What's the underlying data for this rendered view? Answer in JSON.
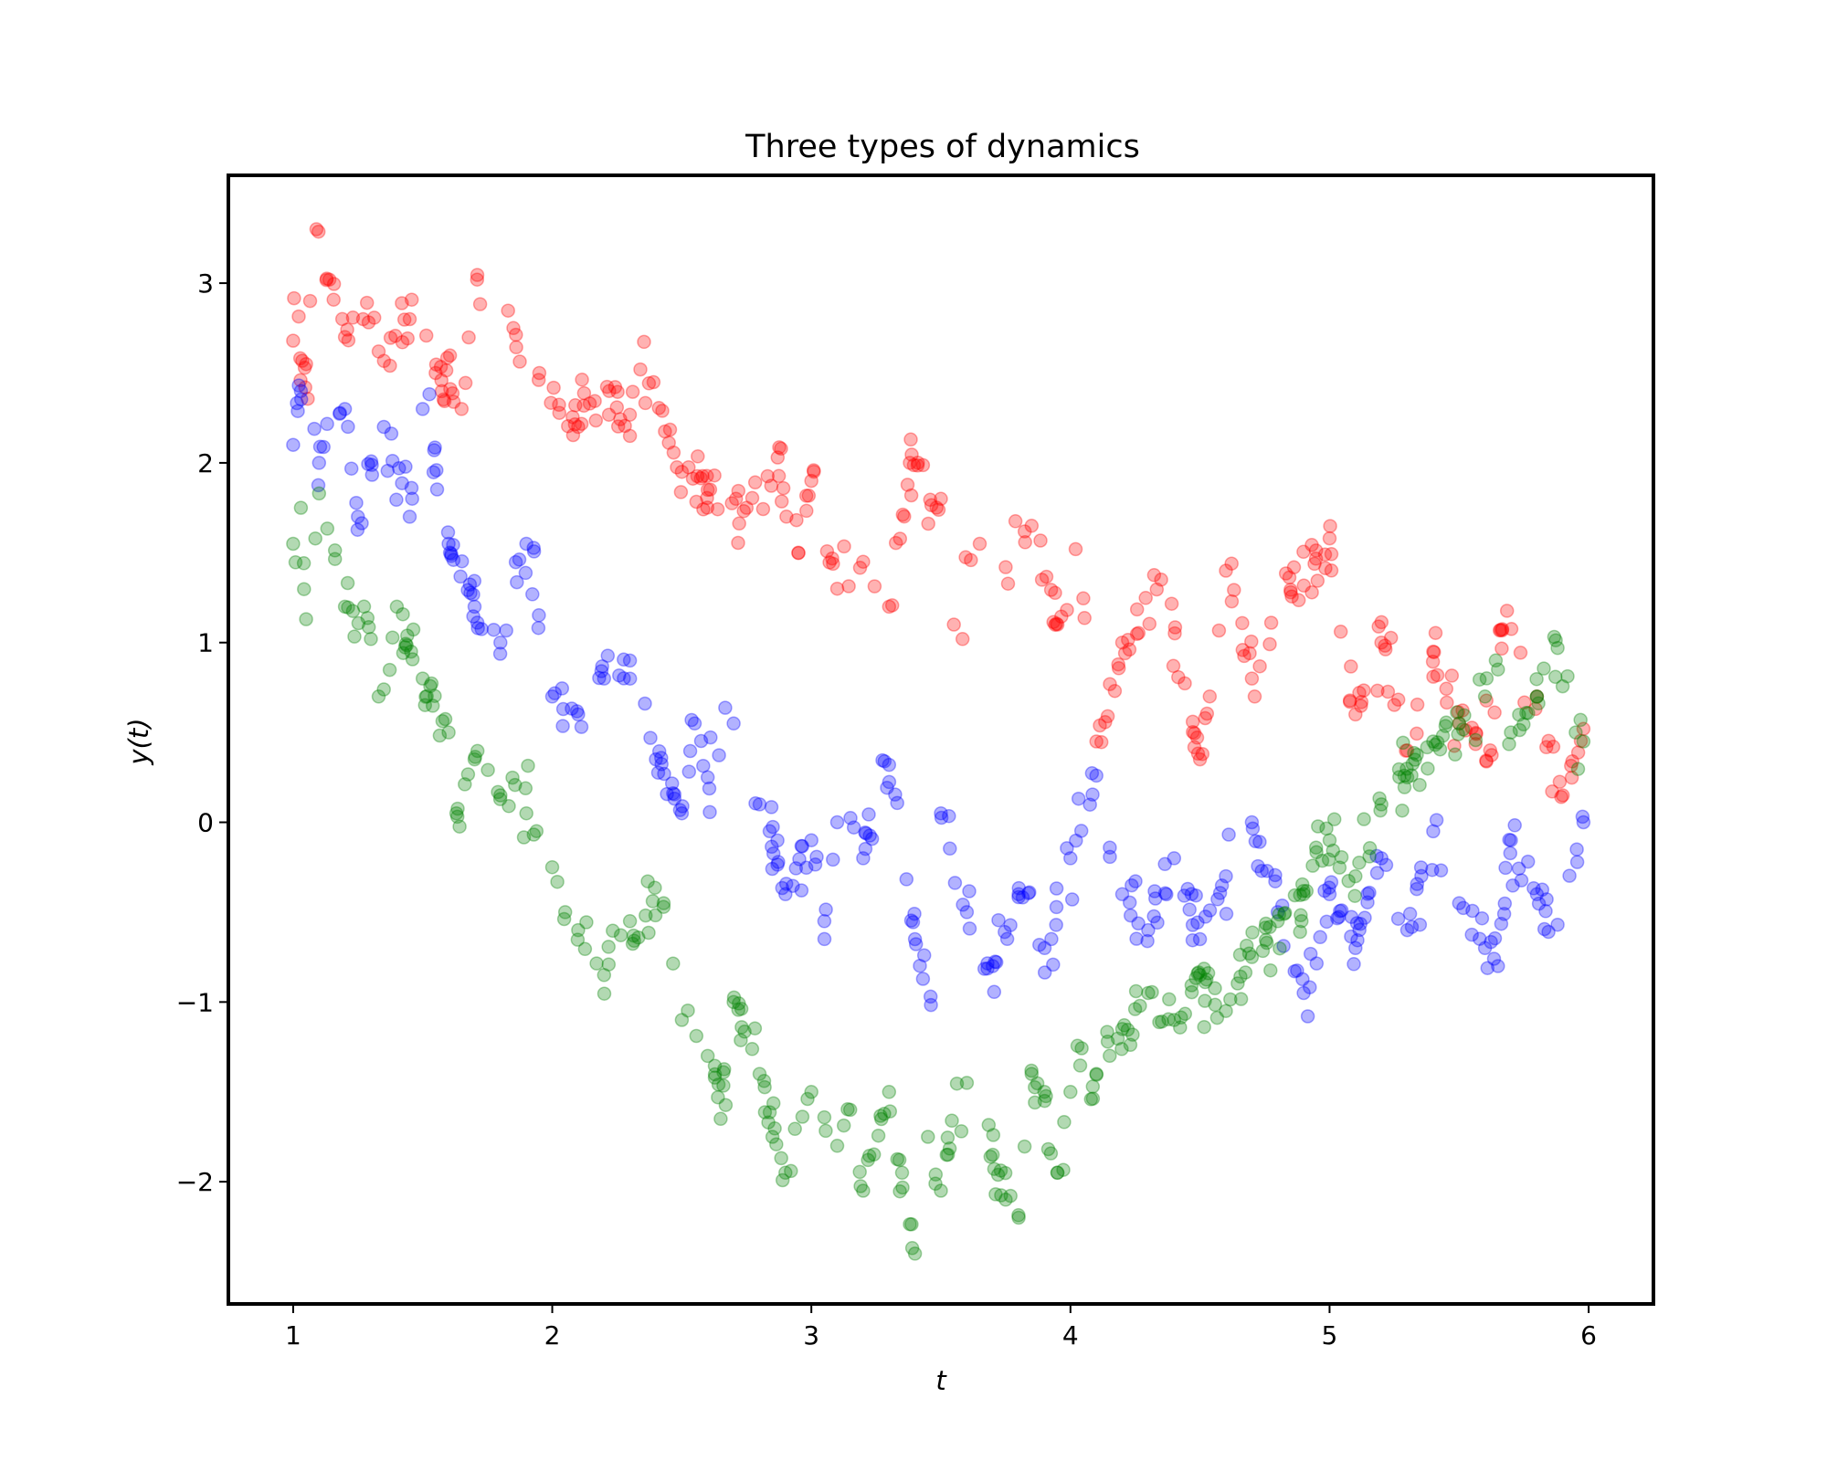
{
  "chart_data": {
    "type": "scatter",
    "title": "Three types of dynamics",
    "xlabel": "t",
    "ylabel": "y(t)",
    "xlim": [
      0.75,
      6.25
    ],
    "ylim": [
      -2.68,
      3.6
    ],
    "xticks": [
      1,
      2,
      3,
      4,
      5,
      6
    ],
    "xtick_labels": [
      "1",
      "2",
      "3",
      "4",
      "5",
      "6"
    ],
    "yticks": [
      -2,
      -1,
      0,
      1,
      2,
      3
    ],
    "ytick_labels": [
      "−2",
      "−1",
      "0",
      "1",
      "2",
      "3"
    ],
    "grid": false,
    "legend": "none",
    "n_points_per_series": 300,
    "series": [
      {
        "color": "#ff0000",
        "points": [
          [
            1.0,
            2.68
          ],
          [
            1.05,
            2.55
          ],
          [
            1.09,
            3.3
          ],
          [
            1.14,
            3.02
          ],
          [
            1.2,
            2.7
          ],
          [
            1.27,
            2.8
          ],
          [
            1.33,
            2.62
          ],
          [
            1.45,
            2.8
          ],
          [
            1.55,
            2.5
          ],
          [
            1.65,
            2.3
          ],
          [
            1.71,
            3.02
          ],
          [
            1.85,
            2.75
          ],
          [
            1.95,
            2.5
          ],
          [
            2.1,
            2.2
          ],
          [
            2.22,
            2.4
          ],
          [
            2.3,
            2.15
          ],
          [
            2.34,
            2.52
          ],
          [
            2.5,
            1.95
          ],
          [
            2.6,
            1.85
          ],
          [
            2.75,
            1.75
          ],
          [
            2.87,
            2.03
          ],
          [
            2.95,
            1.5
          ],
          [
            3.0,
            1.9
          ],
          [
            3.1,
            1.3
          ],
          [
            3.2,
            1.45
          ],
          [
            3.3,
            1.2
          ],
          [
            3.38,
            2.0
          ],
          [
            3.5,
            1.8
          ],
          [
            3.55,
            1.1
          ],
          [
            3.65,
            1.55
          ],
          [
            3.75,
            1.42
          ],
          [
            3.85,
            1.65
          ],
          [
            3.95,
            1.1
          ],
          [
            4.02,
            1.52
          ],
          [
            4.1,
            0.45
          ],
          [
            4.2,
            1.0
          ],
          [
            4.35,
            1.35
          ],
          [
            4.5,
            0.35
          ],
          [
            4.6,
            1.4
          ],
          [
            4.7,
            0.8
          ],
          [
            4.85,
            1.28
          ],
          [
            5.0,
            1.58
          ],
          [
            5.1,
            0.6
          ],
          [
            5.2,
            1.0
          ],
          [
            5.3,
            0.4
          ],
          [
            5.4,
            0.95
          ],
          [
            5.5,
            0.55
          ],
          [
            5.62,
            0.4
          ],
          [
            5.66,
            1.07
          ],
          [
            5.8,
            0.7
          ],
          [
            5.9,
            0.15
          ],
          [
            5.98,
            0.52
          ]
        ]
      },
      {
        "color": "#0000ff",
        "points": [
          [
            1.0,
            2.1
          ],
          [
            1.03,
            2.4
          ],
          [
            1.1,
            2.0
          ],
          [
            1.2,
            2.3
          ],
          [
            1.25,
            1.7
          ],
          [
            1.35,
            2.2
          ],
          [
            1.45,
            1.7
          ],
          [
            1.5,
            2.3
          ],
          [
            1.6,
            1.55
          ],
          [
            1.7,
            1.2
          ],
          [
            1.8,
            1.0
          ],
          [
            1.9,
            1.55
          ],
          [
            2.0,
            0.7
          ],
          [
            2.1,
            0.6
          ],
          [
            2.2,
            0.8
          ],
          [
            2.3,
            0.9
          ],
          [
            2.4,
            0.35
          ],
          [
            2.5,
            0.05
          ],
          [
            2.55,
            0.55
          ],
          [
            2.6,
            0.25
          ],
          [
            2.7,
            0.55
          ],
          [
            2.8,
            0.1
          ],
          [
            2.9,
            -0.4
          ],
          [
            3.0,
            -0.1
          ],
          [
            3.05,
            -0.55
          ],
          [
            3.1,
            0.0
          ],
          [
            3.2,
            -0.2
          ],
          [
            3.3,
            0.32
          ],
          [
            3.4,
            -0.65
          ],
          [
            3.46,
            -0.97
          ],
          [
            3.5,
            0.05
          ],
          [
            3.6,
            -0.5
          ],
          [
            3.7,
            -0.8
          ],
          [
            3.8,
            -0.4
          ],
          [
            3.9,
            -0.7
          ],
          [
            4.0,
            -0.2
          ],
          [
            4.1,
            0.26
          ],
          [
            4.2,
            -0.4
          ],
          [
            4.3,
            -0.6
          ],
          [
            4.4,
            -0.2
          ],
          [
            4.5,
            -0.65
          ],
          [
            4.6,
            -0.3
          ],
          [
            4.7,
            0.0
          ],
          [
            4.8,
            -0.5
          ],
          [
            4.9,
            -0.95
          ],
          [
            5.0,
            -0.4
          ],
          [
            5.1,
            -0.7
          ],
          [
            5.2,
            -0.2
          ],
          [
            5.3,
            -0.6
          ],
          [
            5.4,
            -0.05
          ],
          [
            5.5,
            -0.45
          ],
          [
            5.6,
            -0.7
          ],
          [
            5.65,
            -0.8
          ],
          [
            5.7,
            -0.1
          ],
          [
            5.8,
            -0.4
          ],
          [
            5.88,
            -0.57
          ],
          [
            5.98,
            0.0
          ]
        ]
      },
      {
        "color": "#008000",
        "points": [
          [
            1.0,
            1.55
          ],
          [
            1.03,
            1.75
          ],
          [
            1.05,
            1.13
          ],
          [
            1.1,
            1.83
          ],
          [
            1.2,
            1.2
          ],
          [
            1.3,
            1.02
          ],
          [
            1.33,
            0.7
          ],
          [
            1.4,
            1.2
          ],
          [
            1.5,
            0.8
          ],
          [
            1.6,
            0.5
          ],
          [
            1.63,
            0.05
          ],
          [
            1.7,
            0.35
          ],
          [
            1.8,
            0.15
          ],
          [
            1.9,
            0.05
          ],
          [
            2.0,
            -0.25
          ],
          [
            2.05,
            -0.5
          ],
          [
            2.1,
            -0.6
          ],
          [
            2.2,
            -0.85
          ],
          [
            2.3,
            -0.55
          ],
          [
            2.43,
            -0.45
          ],
          [
            2.5,
            -1.1
          ],
          [
            2.6,
            -1.3
          ],
          [
            2.65,
            -1.65
          ],
          [
            2.7,
            -1.0
          ],
          [
            2.8,
            -1.4
          ],
          [
            2.85,
            -1.75
          ],
          [
            2.9,
            -1.95
          ],
          [
            3.0,
            -1.5
          ],
          [
            3.1,
            -1.8
          ],
          [
            3.15,
            -1.6
          ],
          [
            3.2,
            -2.05
          ],
          [
            3.3,
            -1.5
          ],
          [
            3.35,
            -1.95
          ],
          [
            3.4,
            -2.4
          ],
          [
            3.45,
            -1.75
          ],
          [
            3.5,
            -2.05
          ],
          [
            3.6,
            -1.45
          ],
          [
            3.7,
            -1.85
          ],
          [
            3.75,
            -2.1
          ],
          [
            3.8,
            -2.2
          ],
          [
            3.85,
            -1.4
          ],
          [
            3.9,
            -1.55
          ],
          [
            3.95,
            -1.95
          ],
          [
            4.0,
            -1.5
          ],
          [
            4.1,
            -1.4
          ],
          [
            4.2,
            -1.15
          ],
          [
            4.3,
            -0.95
          ],
          [
            4.4,
            -1.1
          ],
          [
            4.5,
            -0.85
          ],
          [
            4.6,
            -1.05
          ],
          [
            4.7,
            -0.75
          ],
          [
            4.8,
            -0.55
          ],
          [
            4.9,
            -0.4
          ],
          [
            5.0,
            -0.1
          ],
          [
            5.1,
            -0.3
          ],
          [
            5.2,
            0.1
          ],
          [
            5.3,
            0.25
          ],
          [
            5.4,
            0.45
          ],
          [
            5.5,
            0.55
          ],
          [
            5.6,
            0.7
          ],
          [
            5.65,
            0.85
          ],
          [
            5.7,
            0.5
          ],
          [
            5.8,
            0.7
          ],
          [
            5.88,
            0.97
          ],
          [
            5.95,
            0.5
          ],
          [
            5.98,
            0.45
          ]
        ]
      }
    ]
  }
}
